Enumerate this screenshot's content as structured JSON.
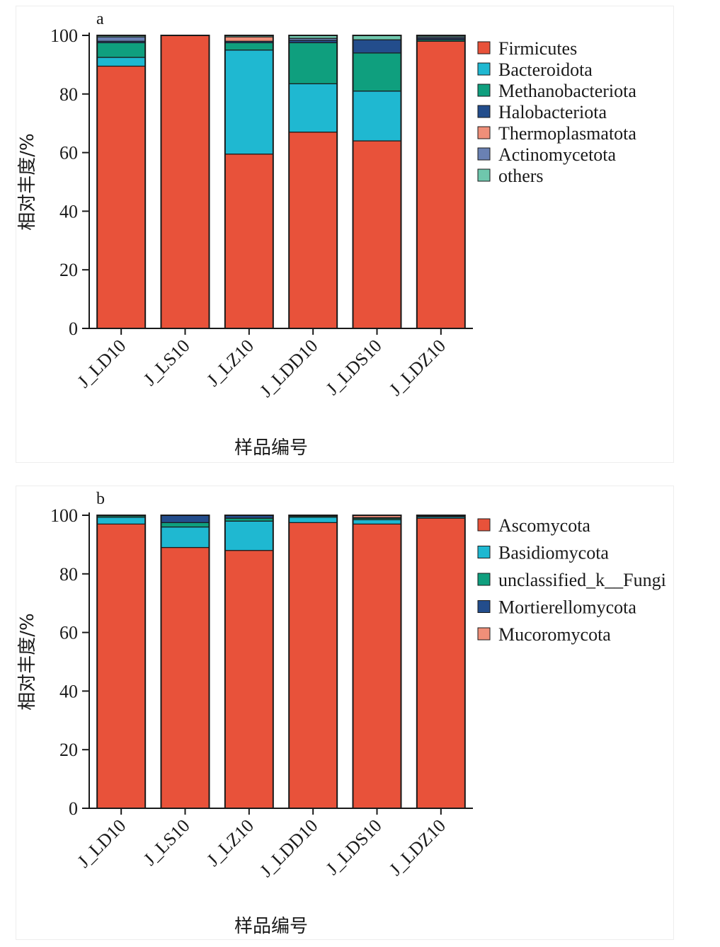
{
  "chart_data": [
    {
      "type": "bar",
      "stacked": true,
      "panel_label": "a",
      "ylabel": "相对丰度/%",
      "xlabel": "样品编号",
      "ylim": [
        0,
        100
      ],
      "yticks": [
        0,
        20,
        40,
        60,
        80,
        100
      ],
      "grid": false,
      "legend_position": "right",
      "categories": [
        "J_LD10",
        "J_LS10",
        "J_LZ10",
        "J_LDD10",
        "J_LDS10",
        "J_LDZ10"
      ],
      "series": [
        {
          "name": "Firmicutes",
          "color": "#e8523a",
          "values": [
            89.5,
            100.0,
            59.5,
            67.0,
            64.0,
            98.0
          ]
        },
        {
          "name": "Bacteroidota",
          "color": "#1fb8d1",
          "values": [
            3.0,
            0.0,
            35.5,
            16.5,
            17.0,
            0.0
          ]
        },
        {
          "name": "Methanobacteriota",
          "color": "#0f9f7e",
          "values": [
            5.0,
            0.0,
            2.5,
            14.0,
            13.0,
            0.5
          ]
        },
        {
          "name": "Halobacteriota",
          "color": "#234d8c",
          "values": [
            0.5,
            0.0,
            0.5,
            0.8,
            4.5,
            0.5
          ]
        },
        {
          "name": "Thermoplasmatota",
          "color": "#ef8f79",
          "values": [
            0.0,
            0.0,
            1.5,
            0.0,
            0.0,
            0.0
          ]
        },
        {
          "name": "Actinomycetota",
          "color": "#6a81b3",
          "values": [
            1.5,
            0.0,
            0.0,
            0.7,
            0.0,
            0.5
          ]
        },
        {
          "name": "others",
          "color": "#6fc7ad",
          "values": [
            0.5,
            0.0,
            0.5,
            1.0,
            1.5,
            0.5
          ]
        }
      ]
    },
    {
      "type": "bar",
      "stacked": true,
      "panel_label": "b",
      "ylabel": "相对丰度/%",
      "xlabel": "样品编号",
      "ylim": [
        0,
        100
      ],
      "yticks": [
        0,
        20,
        40,
        60,
        80,
        100
      ],
      "grid": false,
      "legend_position": "right",
      "categories": [
        "J_LD10",
        "J_LS10",
        "J_LZ10",
        "J_LDD10",
        "J_LDS10",
        "J_LDZ10"
      ],
      "series": [
        {
          "name": "Ascomycota",
          "color": "#e8523a",
          "values": [
            97.0,
            89.0,
            88.0,
            97.5,
            97.0,
            99.0
          ]
        },
        {
          "name": "Basidiomycota",
          "color": "#1fb8d1",
          "values": [
            2.3,
            7.0,
            10.0,
            1.8,
            1.5,
            0.5
          ]
        },
        {
          "name": "unclassified_k__Fungi",
          "color": "#0f9f7e",
          "values": [
            0.5,
            1.5,
            1.0,
            0.4,
            0.5,
            0.3
          ]
        },
        {
          "name": "Mortierellomycota",
          "color": "#234d8c",
          "values": [
            0.2,
            2.5,
            1.0,
            0.3,
            0.2,
            0.2
          ]
        },
        {
          "name": "Mucoromycota",
          "color": "#ef8f79",
          "values": [
            0.0,
            0.0,
            0.0,
            0.0,
            0.8,
            0.0
          ]
        }
      ]
    }
  ]
}
